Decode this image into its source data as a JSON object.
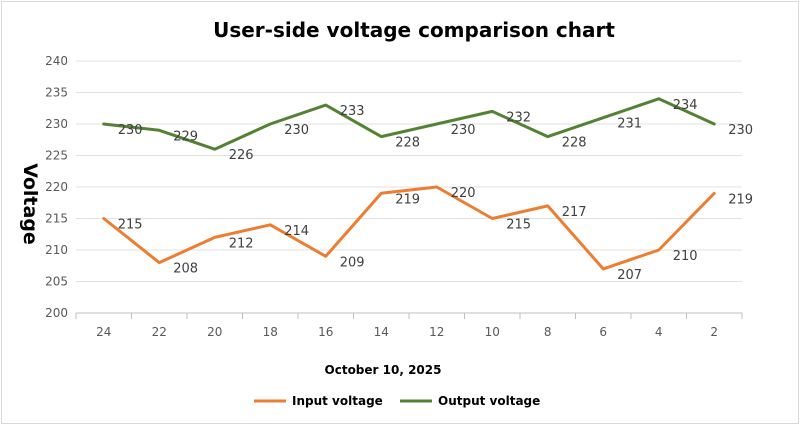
{
  "chart_data": {
    "type": "line",
    "title": "User-side voltage comparison chart",
    "xlabel": "October 10, 2025",
    "ylabel": "Voltage",
    "categories": [
      "24",
      "22",
      "20",
      "18",
      "16",
      "14",
      "12",
      "10",
      "8",
      "6",
      "4",
      "2"
    ],
    "ylim": [
      200,
      240
    ],
    "yticks": [
      "200",
      "205",
      "210",
      "215",
      "220",
      "225",
      "230",
      "235",
      "240"
    ],
    "grid": true,
    "legend_position": "bottom",
    "series": [
      {
        "name": "Input voltage",
        "color": "#ed7d31",
        "values": [
          215,
          208,
          212,
          214,
          209,
          219,
          220,
          215,
          217,
          207,
          210,
          219
        ],
        "labels": [
          "215",
          "208",
          "212",
          "214",
          "209",
          "219",
          "220",
          "215",
          "217",
          "207",
          "210",
          "219"
        ]
      },
      {
        "name": "Output voltage",
        "color": "#548235",
        "values": [
          230,
          229,
          226,
          230,
          233,
          228,
          230,
          232,
          228,
          231,
          234,
          230
        ],
        "labels": [
          "230",
          "229",
          "226",
          "230",
          "233",
          "228",
          "230",
          "232",
          "228",
          "231",
          "234",
          "230"
        ]
      }
    ]
  }
}
